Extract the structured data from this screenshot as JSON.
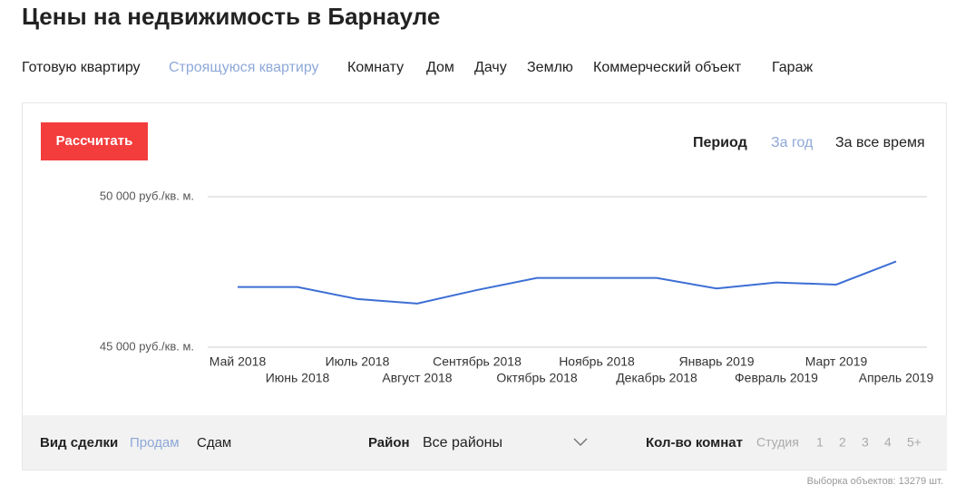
{
  "header": {
    "title": "Цены на недвижимость в Барнауле"
  },
  "tabs": {
    "items": [
      "Готовую квартиру",
      "Строящуюся квартиру",
      "Комнату",
      "Дом",
      "Дачу",
      "Землю",
      "Коммерческий объект",
      "Гараж"
    ],
    "active": 1
  },
  "controls": {
    "button": "Рассчитать",
    "period_label": "Период",
    "period_options": [
      "За год",
      "За все время"
    ],
    "period_active": 0
  },
  "chart_data": {
    "type": "line",
    "categories": [
      "Май 2018",
      "Июнь 2018",
      "Июль 2018",
      "Август 2018",
      "Сентябрь 2018",
      "Октябрь 2018",
      "Ноябрь 2018",
      "Декабрь 2018",
      "Январь 2019",
      "Февраль 2019",
      "Март 2019",
      "Апрель 2019"
    ],
    "values": [
      47000,
      47000,
      46600,
      46450,
      46900,
      47300,
      47300,
      47300,
      46950,
      47150,
      47080,
      47850
    ],
    "color": "#3d6ed4",
    "ylim": [
      45000,
      50000
    ],
    "yticks": [
      {
        "value": 45000,
        "label": "45 000 руб./кв. м."
      },
      {
        "value": 50000,
        "label": "50 000 руб./кв. м."
      }
    ],
    "grid": true
  },
  "filters": {
    "deal": {
      "label": "Вид сделки",
      "options": [
        "Продам",
        "Сдам"
      ],
      "active": 0
    },
    "district": {
      "label": "Район",
      "value": "Все районы"
    },
    "rooms": {
      "label": "Кол-во комнат",
      "options": [
        "Студия",
        "1",
        "2",
        "3",
        "4",
        "5+"
      ]
    }
  },
  "footer": {
    "count_text": "Выборка объектов: 13279 шт."
  }
}
